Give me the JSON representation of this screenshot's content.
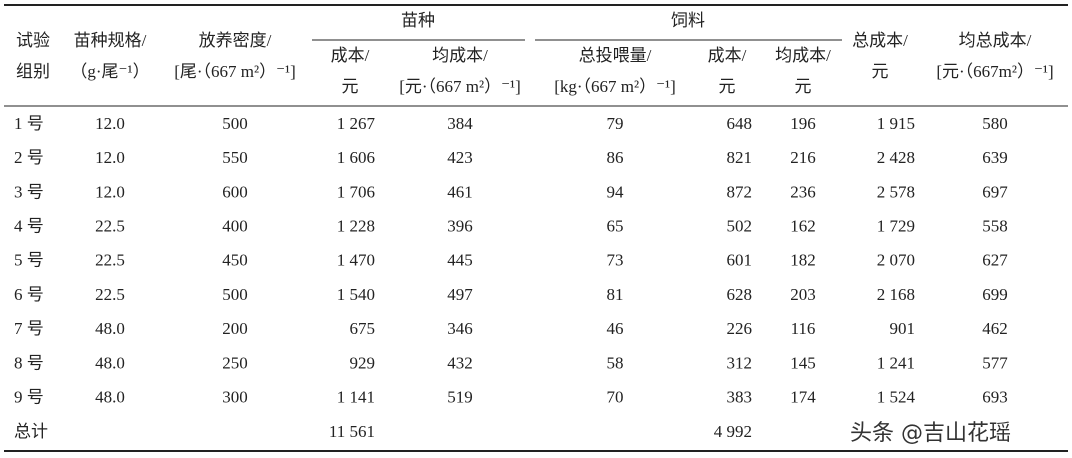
{
  "table": {
    "header": {
      "cols": [
        [
          "试验",
          "组别"
        ],
        [
          "苗种规格/",
          "（g·尾⁻¹）"
        ],
        [
          "放养密度/",
          "[尾·（667 m²）⁻¹]"
        ],
        [
          "成本/",
          "元"
        ],
        [
          "均成本/",
          "[元·（667 m²）⁻¹]"
        ],
        [
          "总投喂量/",
          "[kg·（667 m²）⁻¹]"
        ],
        [
          "成本/",
          "元"
        ],
        [
          "均成本/",
          "元"
        ],
        [
          "总成本/",
          "元"
        ],
        [
          "均总成本/",
          "[元·（667m²）⁻¹]"
        ]
      ],
      "groups": [
        "苗种",
        "饲料"
      ]
    },
    "rows": [
      [
        "1 号",
        "12.0",
        "500",
        "1 267",
        "384",
        "79",
        "648",
        "196",
        "1 915",
        "580"
      ],
      [
        "2 号",
        "12.0",
        "550",
        "1 606",
        "423",
        "86",
        "821",
        "216",
        "2 428",
        "639"
      ],
      [
        "3 号",
        "12.0",
        "600",
        "1 706",
        "461",
        "94",
        "872",
        "236",
        "2 578",
        "697"
      ],
      [
        "4 号",
        "22.5",
        "400",
        "1 228",
        "396",
        "65",
        "502",
        "162",
        "1 729",
        "558"
      ],
      [
        "5 号",
        "22.5",
        "450",
        "1 470",
        "445",
        "73",
        "601",
        "182",
        "2 070",
        "627"
      ],
      [
        "6 号",
        "22.5",
        "500",
        "1 540",
        "497",
        "81",
        "628",
        "203",
        "2 168",
        "699"
      ],
      [
        "7 号",
        "48.0",
        "200",
        "675",
        "346",
        "46",
        "226",
        "116",
        "901",
        "462"
      ],
      [
        "8 号",
        "48.0",
        "250",
        "929",
        "432",
        "58",
        "312",
        "145",
        "1 241",
        "577"
      ],
      [
        "9 号",
        "48.0",
        "300",
        "1 141",
        "519",
        "70",
        "383",
        "174",
        "1 524",
        "693"
      ]
    ],
    "total": {
      "label": "总计",
      "seed_cost": "11 561",
      "feed_cost": "4 992"
    }
  },
  "watermark": "头条 @吉山花瑶"
}
